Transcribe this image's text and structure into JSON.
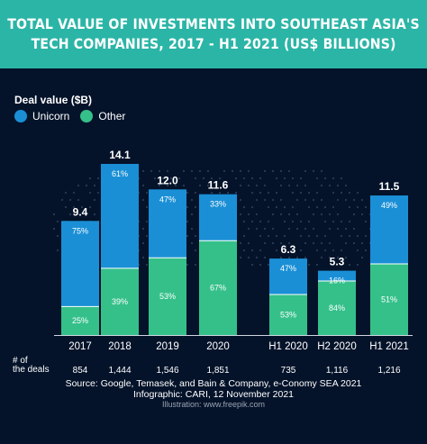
{
  "header": {
    "title_line1": "TOTAL VALUE OF INVESTMENTS INTO SOUTHEAST ASIA'S",
    "title_line2": "TECH COMPANIES, 2017 - H1 2021 (US$ BILLIONS)"
  },
  "legend": {
    "title": "Deal value ($B)",
    "items": [
      {
        "label": "Unicorn",
        "color": "#1a8fd6"
      },
      {
        "label": "Other",
        "color": "#35c08a"
      }
    ]
  },
  "deals_label": {
    "line1": "# of",
    "line2": "the deals"
  },
  "chart_data": {
    "type": "bar",
    "stacked": true,
    "categories": [
      "2017",
      "2018",
      "2019",
      "2020",
      "H1 2020",
      "H2 2020",
      "H1 2021"
    ],
    "totals": [
      9.4,
      14.1,
      12.0,
      11.6,
      6.3,
      5.3,
      11.5
    ],
    "total_labels": [
      "9.4",
      "14.1",
      "12.0",
      "11.6",
      "6.3",
      "5.3",
      "11.5"
    ],
    "series": [
      {
        "name": "Unicorn",
        "color": "#1a8fd6",
        "share_pct": [
          75,
          61,
          47,
          33,
          47,
          16,
          49
        ]
      },
      {
        "name": "Other",
        "color": "#35c08a",
        "share_pct": [
          25,
          39,
          53,
          67,
          53,
          84,
          51
        ]
      }
    ],
    "deals": [
      "854",
      "1,444",
      "1,546",
      "1,851",
      "735",
      "1,116",
      "1,216"
    ],
    "ylim": [
      0,
      14.1
    ]
  },
  "footer": {
    "source": "Source:  Google, Temasek, and Bain & Company, e-Conomy SEA 2021",
    "infographic": "Infographic: CARI, 12 November 2021",
    "illustration": "Illustration: www.freepik.com"
  }
}
